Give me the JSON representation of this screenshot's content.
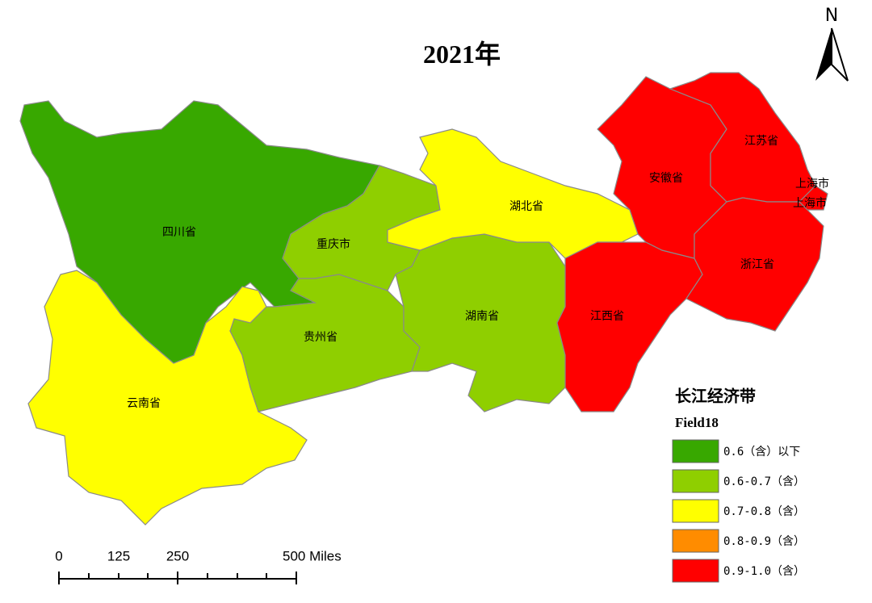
{
  "title": "2021年",
  "north": "N",
  "regions": [
    {
      "labels": [
        "四川省"
      ],
      "color": "#38a800"
    },
    {
      "labels": [
        "云南省"
      ],
      "color": "#ffff00"
    },
    {
      "labels": [
        "重庆市"
      ],
      "color": "#8fcf00"
    },
    {
      "labels": [
        "贵州省"
      ],
      "color": "#8fcf00"
    },
    {
      "labels": [
        "湖南省"
      ],
      "color": "#8fcf00"
    },
    {
      "labels": [
        "湖北省"
      ],
      "color": "#ffff00"
    },
    {
      "labels": [
        "江西省"
      ],
      "color": "#ff0000"
    },
    {
      "labels": [
        "安徽省"
      ],
      "color": "#ff0000"
    },
    {
      "labels": [
        "江苏省"
      ],
      "color": "#ff0000"
    },
    {
      "labels": [
        "上海市",
        "上海市"
      ],
      "color": "#ff0000"
    },
    {
      "labels": [
        "浙江省"
      ],
      "color": "#ff0000"
    }
  ],
  "legend": {
    "title": "长江经济带",
    "field": "Field18",
    "items": [
      {
        "label": "0.6（含）以下",
        "color": "#38a800"
      },
      {
        "label": "0.6-0.7（含）",
        "color": "#8fcf00"
      },
      {
        "label": "0.7-0.8（含）",
        "color": "#ffff00"
      },
      {
        "label": "0.8-0.9（含）",
        "color": "#ff8c00"
      },
      {
        "label": "0.9-1.0（含）",
        "color": "#ff0000"
      }
    ]
  },
  "scale_bar": {
    "labels": [
      "0",
      "125",
      "250",
      "500 Miles"
    ]
  }
}
